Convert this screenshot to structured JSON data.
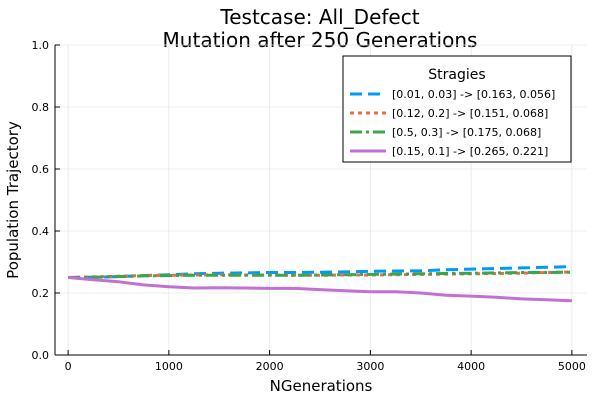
{
  "chart_data": {
    "type": "line",
    "title": "Testcase: All_Defect",
    "subtitle": "Mutation after 250 Generations",
    "xlabel": "NGenerations",
    "ylabel": "Population Trajectory",
    "xlim": [
      -130,
      5150
    ],
    "ylim": [
      0,
      1.0
    ],
    "xticks": [
      0,
      1000,
      2000,
      3000,
      4000,
      5000
    ],
    "yticks": [
      0.0,
      0.2,
      0.4,
      0.6,
      0.8,
      1.0
    ],
    "xtick_labels": [
      "0",
      "1000",
      "2000",
      "3000",
      "4000",
      "5000"
    ],
    "ytick_labels": [
      "0.0",
      "0.2",
      "0.4",
      "0.6",
      "0.8",
      "1.0"
    ],
    "grid": true,
    "legend": {
      "title": "Stragies",
      "placement": "top-right"
    },
    "series": [
      {
        "name": "[0.01, 0.03] -> [0.163, 0.056]",
        "color": "#009af9",
        "dash": "dashed",
        "x": [
          0,
          250,
          500,
          750,
          1000,
          1250,
          1500,
          1750,
          2000,
          2250,
          2500,
          2750,
          3000,
          3250,
          3500,
          3750,
          4000,
          4250,
          4500,
          4750,
          5000
        ],
        "y": [
          0.25,
          0.251,
          0.253,
          0.256,
          0.259,
          0.262,
          0.264,
          0.265,
          0.266,
          0.266,
          0.267,
          0.268,
          0.27,
          0.271,
          0.272,
          0.275,
          0.277,
          0.279,
          0.281,
          0.283,
          0.285
        ]
      },
      {
        "name": "[0.12, 0.2] -> [0.151, 0.068]",
        "color": "#e26f46",
        "dash": "dotted",
        "x": [
          0,
          250,
          500,
          750,
          1000,
          1250,
          1500,
          1750,
          2000,
          2250,
          2500,
          2750,
          3000,
          3250,
          3500,
          3750,
          4000,
          4250,
          4500,
          4750,
          5000
        ],
        "y": [
          0.25,
          0.252,
          0.254,
          0.256,
          0.257,
          0.258,
          0.259,
          0.258,
          0.258,
          0.257,
          0.257,
          0.258,
          0.258,
          0.259,
          0.26,
          0.261,
          0.262,
          0.263,
          0.264,
          0.266,
          0.268
        ]
      },
      {
        "name": "[0.5, 0.3] -> [0.175, 0.068]",
        "color": "#3da44d",
        "dash": "dashdot",
        "x": [
          0,
          250,
          500,
          750,
          1000,
          1250,
          1500,
          1750,
          2000,
          2250,
          2500,
          2750,
          3000,
          3250,
          3500,
          3750,
          4000,
          4250,
          4500,
          4750,
          5000
        ],
        "y": [
          0.25,
          0.251,
          0.253,
          0.255,
          0.256,
          0.257,
          0.257,
          0.257,
          0.257,
          0.257,
          0.258,
          0.259,
          0.26,
          0.261,
          0.262,
          0.263,
          0.264,
          0.265,
          0.266,
          0.266,
          0.267
        ]
      },
      {
        "name": "[0.15, 0.1] -> [0.265, 0.221]",
        "color": "#c271d2",
        "dash": "solid",
        "x": [
          0,
          250,
          500,
          750,
          1000,
          1250,
          1500,
          1750,
          2000,
          2250,
          2500,
          2750,
          3000,
          3250,
          3500,
          3750,
          4000,
          4250,
          4500,
          4750,
          5000
        ],
        "y": [
          0.25,
          0.243,
          0.236,
          0.226,
          0.22,
          0.216,
          0.217,
          0.216,
          0.215,
          0.215,
          0.211,
          0.207,
          0.204,
          0.204,
          0.2,
          0.193,
          0.19,
          0.186,
          0.181,
          0.178,
          0.175
        ]
      }
    ]
  }
}
